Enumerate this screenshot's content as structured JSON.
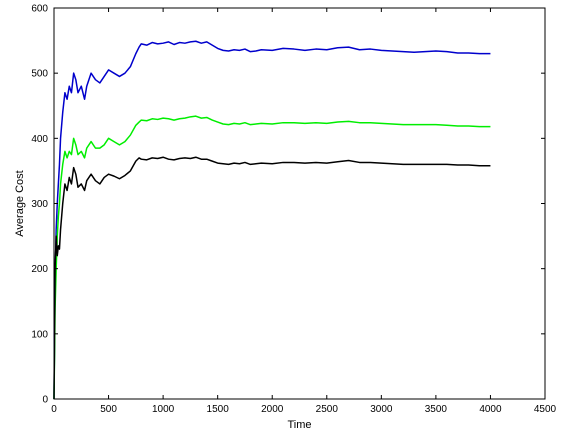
{
  "chart_data": {
    "type": "line",
    "title": "",
    "xlabel": "Time",
    "ylabel": "Average Cost",
    "xlim": [
      0,
      4500
    ],
    "ylim": [
      0,
      600
    ],
    "xticks": [
      0,
      500,
      1000,
      1500,
      2000,
      2500,
      3000,
      3500,
      4000,
      4500
    ],
    "yticks": [
      0,
      100,
      200,
      300,
      400,
      500,
      600
    ],
    "grid": false,
    "series": [
      {
        "color": "#0000cc",
        "x": [
          0,
          10,
          20,
          30,
          40,
          50,
          60,
          80,
          100,
          120,
          140,
          160,
          180,
          200,
          220,
          250,
          280,
          300,
          340,
          380,
          420,
          460,
          500,
          550,
          600,
          650,
          700,
          750,
          780,
          800,
          850,
          900,
          950,
          1000,
          1050,
          1100,
          1150,
          1200,
          1250,
          1300,
          1350,
          1400,
          1450,
          1500,
          1550,
          1600,
          1650,
          1700,
          1750,
          1800,
          1850,
          1900,
          2000,
          2100,
          2200,
          2300,
          2400,
          2500,
          2600,
          2700,
          2800,
          2900,
          3000,
          3100,
          3200,
          3300,
          3400,
          3500,
          3600,
          3700,
          3800,
          3900,
          4000
        ],
        "values": [
          0,
          180,
          260,
          300,
          330,
          360,
          400,
          440,
          470,
          460,
          480,
          470,
          500,
          490,
          470,
          480,
          460,
          480,
          500,
          490,
          485,
          495,
          505,
          500,
          495,
          500,
          510,
          530,
          540,
          545,
          543,
          547,
          545,
          546,
          548,
          544,
          547,
          546,
          548,
          549,
          546,
          548,
          543,
          538,
          535,
          534,
          536,
          535,
          537,
          533,
          534,
          536,
          535,
          538,
          537,
          535,
          537,
          536,
          539,
          540,
          536,
          537,
          535,
          534,
          533,
          532,
          533,
          534,
          533,
          531,
          531,
          530,
          530
        ]
      },
      {
        "color": "#00ee00",
        "x": [
          0,
          10,
          20,
          30,
          40,
          50,
          60,
          80,
          100,
          120,
          140,
          160,
          180,
          200,
          220,
          250,
          280,
          300,
          340,
          380,
          420,
          460,
          500,
          550,
          600,
          650,
          700,
          750,
          780,
          800,
          850,
          900,
          950,
          1000,
          1050,
          1100,
          1150,
          1200,
          1250,
          1300,
          1350,
          1400,
          1450,
          1500,
          1550,
          1600,
          1650,
          1700,
          1750,
          1800,
          1850,
          1900,
          2000,
          2100,
          2200,
          2300,
          2400,
          2500,
          2600,
          2700,
          2800,
          2900,
          3000,
          3100,
          3200,
          3300,
          3400,
          3500,
          3600,
          3700,
          3800,
          3900,
          4000
        ],
        "values": [
          0,
          140,
          200,
          250,
          280,
          300,
          330,
          360,
          380,
          370,
          380,
          375,
          400,
          390,
          375,
          380,
          370,
          385,
          395,
          385,
          385,
          390,
          400,
          395,
          390,
          395,
          405,
          420,
          425,
          428,
          427,
          430,
          429,
          431,
          430,
          428,
          430,
          431,
          433,
          434,
          431,
          432,
          428,
          425,
          422,
          421,
          423,
          422,
          424,
          421,
          422,
          423,
          422,
          424,
          424,
          423,
          424,
          423,
          425,
          426,
          424,
          424,
          423,
          422,
          421,
          421,
          421,
          421,
          420,
          419,
          419,
          418,
          418
        ]
      },
      {
        "color": "#000000",
        "x": [
          0,
          10,
          20,
          30,
          40,
          50,
          60,
          80,
          100,
          120,
          140,
          160,
          180,
          200,
          220,
          250,
          280,
          300,
          340,
          380,
          420,
          460,
          500,
          550,
          600,
          650,
          700,
          750,
          780,
          800,
          850,
          900,
          950,
          1000,
          1050,
          1100,
          1150,
          1200,
          1250,
          1300,
          1350,
          1400,
          1450,
          1500,
          1550,
          1600,
          1650,
          1700,
          1750,
          1800,
          1850,
          1900,
          2000,
          2100,
          2200,
          2300,
          2400,
          2500,
          2600,
          2700,
          2800,
          2900,
          3000,
          3100,
          3200,
          3300,
          3400,
          3500,
          3600,
          3700,
          3800,
          3900,
          4000
        ],
        "values": [
          0,
          200,
          250,
          220,
          235,
          230,
          260,
          300,
          330,
          320,
          340,
          330,
          355,
          345,
          325,
          330,
          320,
          335,
          345,
          335,
          330,
          340,
          345,
          342,
          338,
          343,
          350,
          365,
          370,
          368,
          367,
          370,
          369,
          371,
          368,
          367,
          369,
          370,
          369,
          371,
          368,
          368,
          365,
          362,
          361,
          360,
          362,
          361,
          363,
          360,
          361,
          362,
          361,
          363,
          363,
          362,
          363,
          362,
          364,
          366,
          363,
          363,
          362,
          361,
          360,
          360,
          360,
          360,
          360,
          359,
          359,
          358,
          358
        ]
      }
    ]
  }
}
